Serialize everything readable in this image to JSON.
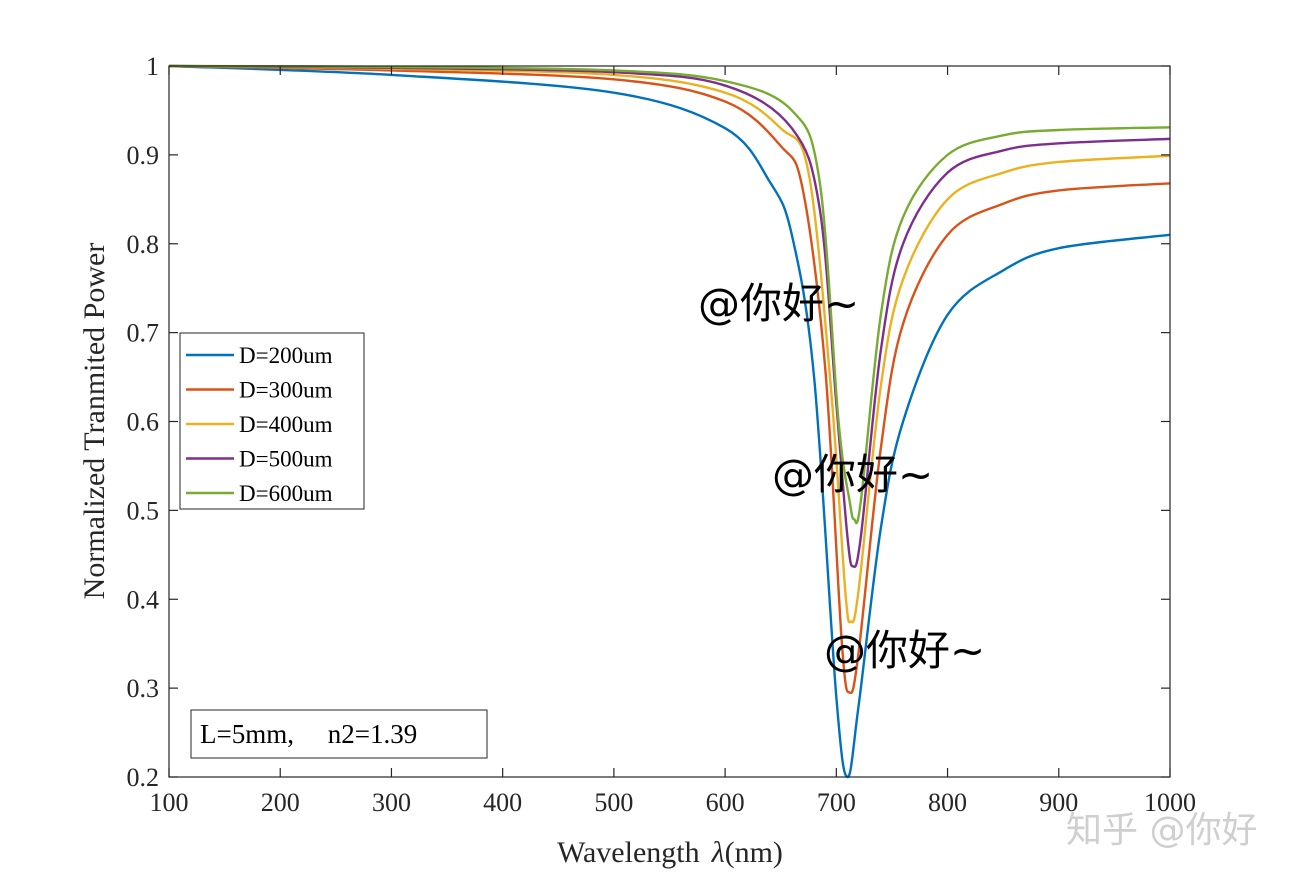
{
  "chart_data": {
    "type": "line",
    "title": "",
    "xlabel": "Wavelength",
    "xlabel_symbol": "λ",
    "xlabel_unit": "(nm)",
    "ylabel": "Normalized Tranmited Power",
    "xlim": [
      100,
      1000
    ],
    "ylim": [
      0.2,
      1
    ],
    "xticks": [
      100,
      200,
      300,
      400,
      500,
      600,
      700,
      800,
      900,
      1000
    ],
    "yticks": [
      0.2,
      0.3,
      0.4,
      0.5,
      0.6,
      0.7,
      0.8,
      0.9,
      1
    ],
    "xtick_labels": [
      "100",
      "200",
      "300",
      "400",
      "500",
      "600",
      "700",
      "800",
      "900",
      "1000"
    ],
    "ytick_labels": [
      "0.2",
      "0.3",
      "0.4",
      "0.5",
      "0.6",
      "0.7",
      "0.8",
      "0.9",
      "1"
    ],
    "grid": false,
    "legend_position": "left",
    "series": [
      {
        "name": "D=200um",
        "color": "#0072BD",
        "x": [
          100,
          300,
          500,
          600,
          640,
          660,
          680,
          700,
          710,
          720,
          740,
          760,
          800,
          850,
          900,
          1000
        ],
        "y": [
          1.0,
          0.99,
          0.97,
          0.93,
          0.87,
          0.81,
          0.65,
          0.29,
          0.2,
          0.28,
          0.48,
          0.6,
          0.72,
          0.77,
          0.795,
          0.81
        ]
      },
      {
        "name": "D=300um",
        "color": "#D95319",
        "x": [
          100,
          300,
          500,
          600,
          650,
          670,
          690,
          705,
          712,
          720,
          740,
          760,
          800,
          850,
          900,
          1000
        ],
        "y": [
          1.0,
          0.995,
          0.985,
          0.96,
          0.91,
          0.86,
          0.66,
          0.35,
          0.295,
          0.34,
          0.57,
          0.71,
          0.81,
          0.845,
          0.86,
          0.868
        ]
      },
      {
        "name": "D=400um",
        "color": "#EDB120",
        "x": [
          100,
          300,
          500,
          600,
          650,
          675,
          695,
          708,
          713,
          720,
          740,
          760,
          800,
          850,
          900,
          1000
        ],
        "y": [
          1.0,
          0.997,
          0.99,
          0.97,
          0.93,
          0.88,
          0.64,
          0.41,
          0.375,
          0.41,
          0.64,
          0.76,
          0.85,
          0.88,
          0.892,
          0.899
        ]
      },
      {
        "name": "D=500um",
        "color": "#7E2F8E",
        "x": [
          100,
          300,
          500,
          600,
          660,
          685,
          700,
          710,
          715,
          722,
          740,
          760,
          800,
          850,
          900,
          1000
        ],
        "y": [
          1.0,
          0.998,
          0.993,
          0.978,
          0.93,
          0.84,
          0.62,
          0.47,
          0.437,
          0.47,
          0.68,
          0.8,
          0.88,
          0.905,
          0.913,
          0.918
        ]
      },
      {
        "name": "D=600um",
        "color": "#77AC30",
        "x": [
          100,
          300,
          500,
          600,
          660,
          685,
          702,
          712,
          716,
          722,
          740,
          760,
          800,
          850,
          900,
          1000
        ],
        "y": [
          1.0,
          0.999,
          0.995,
          0.983,
          0.95,
          0.87,
          0.6,
          0.51,
          0.49,
          0.51,
          0.72,
          0.83,
          0.9,
          0.922,
          0.928,
          0.931
        ]
      }
    ],
    "annotation": "L=5mm,     n2=1.39"
  },
  "watermarks": {
    "overlay": "@你好~",
    "corner": "知乎 @你好"
  }
}
